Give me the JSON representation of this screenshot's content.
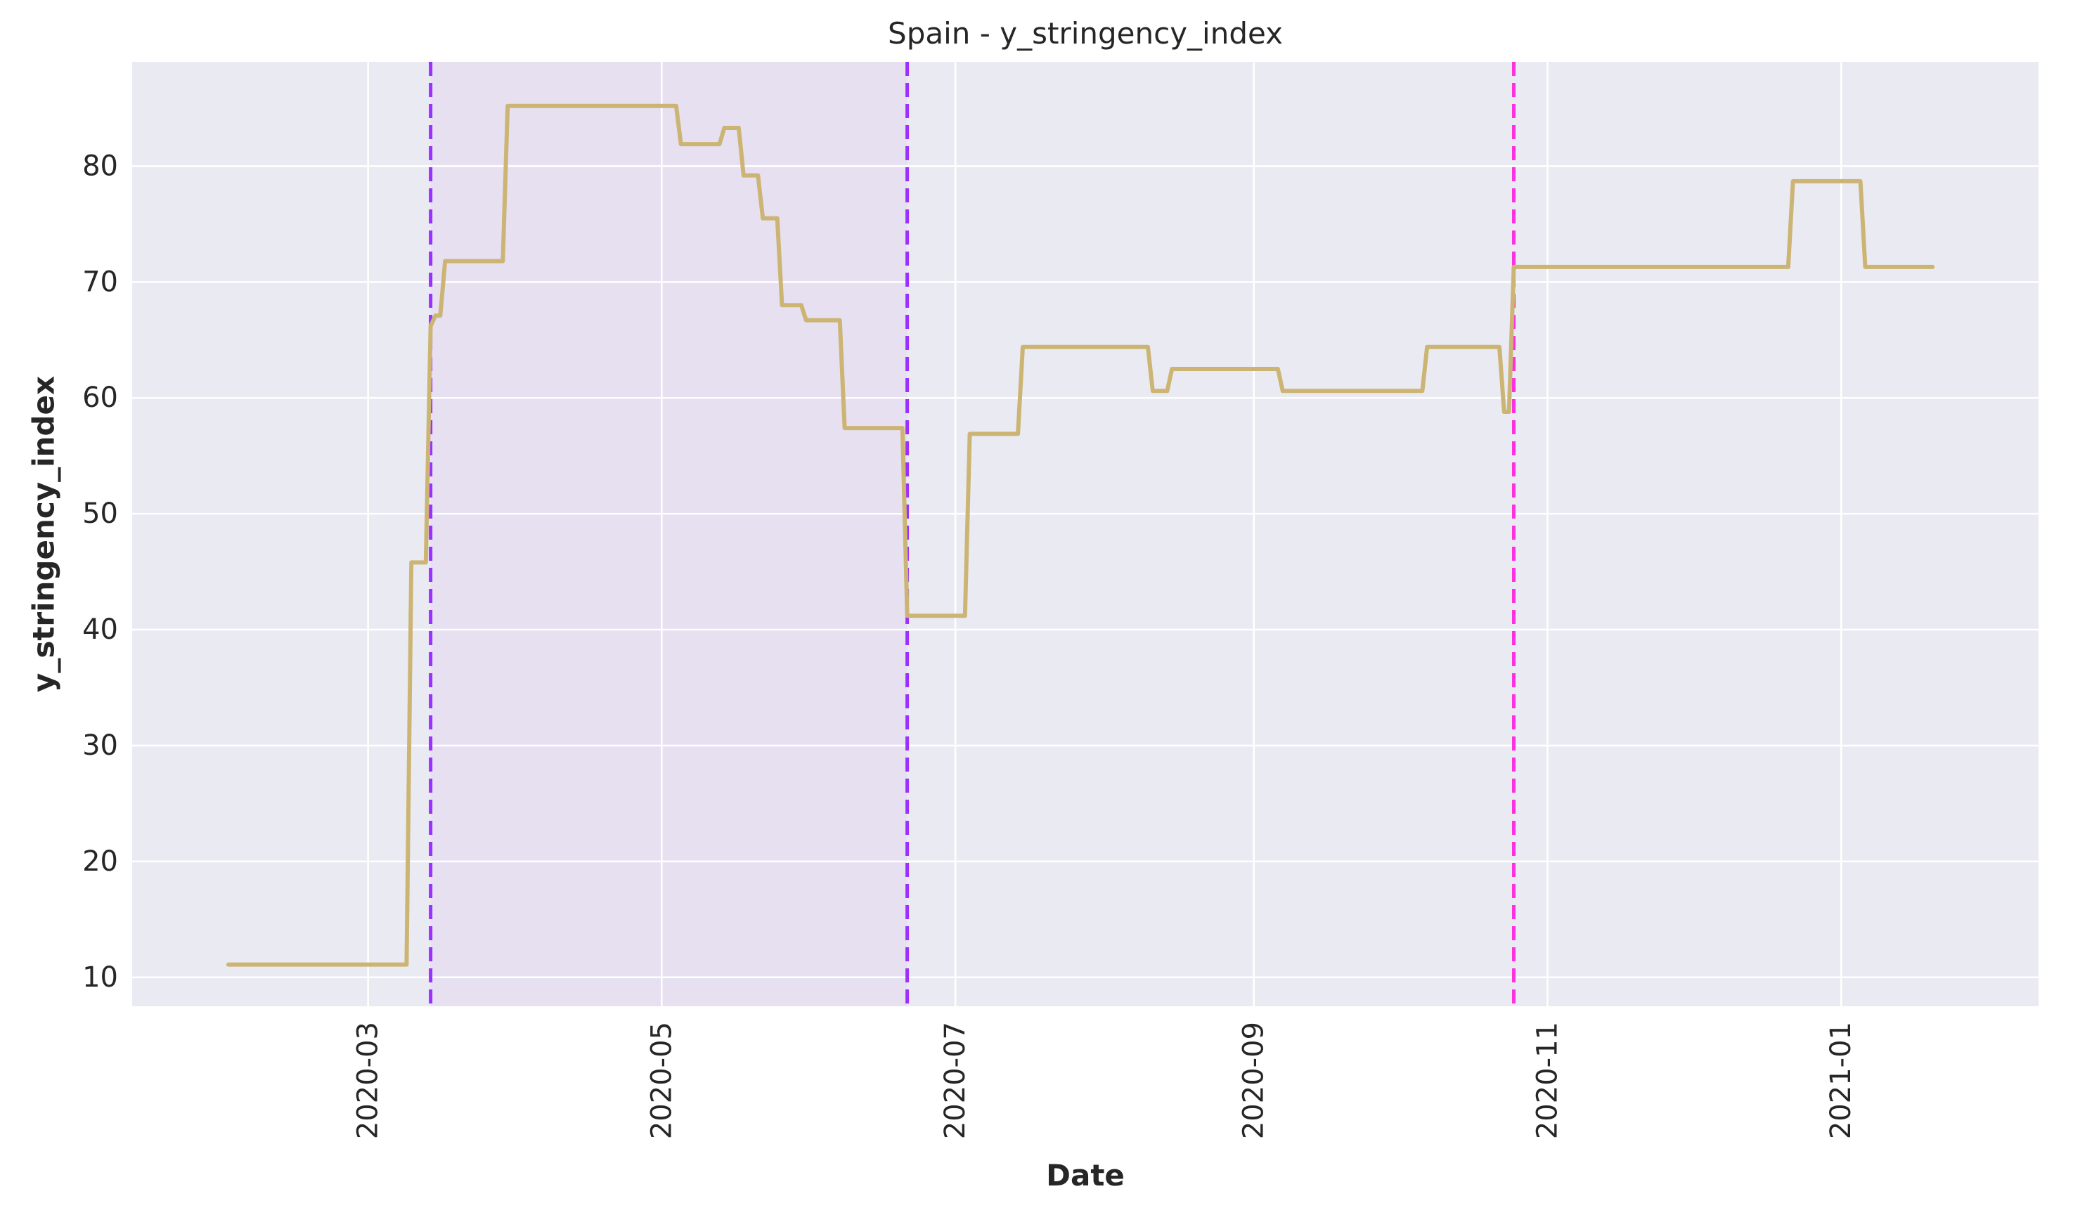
{
  "chart_data": {
    "type": "line",
    "title": "Spain - y_stringency_index",
    "xlabel": "Date",
    "ylabel": "y_stringency_index",
    "grid": true,
    "legend": "none",
    "xlim": [
      "2020-01-12",
      "2021-02-11"
    ],
    "ylim": [
      7.5,
      89
    ],
    "x_ticks": [
      "2020-03",
      "2020-05",
      "2020-07",
      "2020-09",
      "2020-11",
      "2021-01"
    ],
    "y_ticks": [
      10,
      20,
      30,
      40,
      50,
      60,
      70,
      80
    ],
    "colors": {
      "background": "#eaeaf2",
      "grid": "#ffffff",
      "line": "#ccb574",
      "shade": "#e6e0f0",
      "vline_purple": "#9b30ff",
      "vline_magenta": "#ff30e0",
      "text": "#262626"
    },
    "shaded_region": [
      "2020-03-14",
      "2020-06-21"
    ],
    "vlines": [
      {
        "x": "2020-03-14",
        "color": "#9b30ff",
        "style": "dashed"
      },
      {
        "x": "2020-06-21",
        "color": "#9b30ff",
        "style": "dashed"
      },
      {
        "x": "2020-10-25",
        "color": "#ff30e0",
        "style": "dashed"
      }
    ],
    "series": [
      {
        "values_x": [
          "2020-02-01",
          "2020-03-09",
          "2020-03-10",
          "2020-03-13",
          "2020-03-14",
          "2020-03-15",
          "2020-03-16",
          "2020-03-17",
          "2020-03-29",
          "2020-03-30",
          "2020-05-04",
          "2020-05-05",
          "2020-05-13",
          "2020-05-14",
          "2020-05-17",
          "2020-05-18",
          "2020-05-21",
          "2020-05-22",
          "2020-05-25",
          "2020-05-26",
          "2020-05-30",
          "2020-05-31",
          "2020-06-07",
          "2020-06-08",
          "2020-06-20",
          "2020-06-21",
          "2020-07-03",
          "2020-07-04",
          "2020-07-14",
          "2020-07-15",
          "2020-08-10",
          "2020-08-11",
          "2020-08-14",
          "2020-08-15",
          "2020-09-06",
          "2020-09-07",
          "2020-10-06",
          "2020-10-07",
          "2020-10-22",
          "2020-10-23",
          "2020-10-24",
          "2020-10-25",
          "2020-12-21",
          "2020-12-22",
          "2021-01-05",
          "2021-01-06",
          "2021-01-20"
        ],
        "values": [
          11.1,
          11.1,
          45.8,
          45.8,
          66.2,
          67.1,
          67.1,
          71.8,
          71.8,
          85.2,
          85.2,
          81.9,
          81.9,
          83.3,
          83.3,
          79.2,
          79.2,
          75.5,
          75.5,
          68.0,
          68.0,
          66.7,
          66.7,
          57.4,
          57.4,
          41.2,
          41.2,
          56.9,
          56.9,
          64.4,
          64.4,
          60.6,
          60.6,
          62.5,
          62.5,
          60.6,
          60.6,
          64.4,
          64.4,
          58.8,
          58.8,
          71.3,
          71.3,
          78.7,
          78.7,
          71.3,
          71.3
        ]
      }
    ]
  }
}
